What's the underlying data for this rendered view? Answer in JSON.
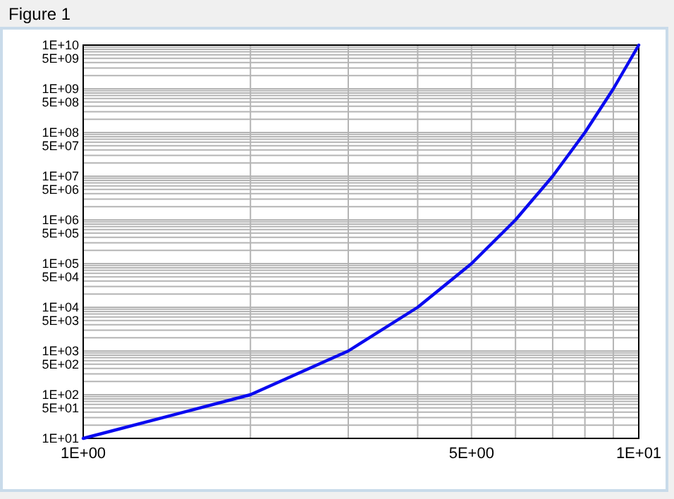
{
  "chart_data": {
    "type": "line",
    "title": "Figure 1",
    "log": "xy",
    "grid": true,
    "x": [
      1,
      2,
      3,
      4,
      5,
      6,
      7,
      8,
      9,
      10
    ],
    "series": [
      {
        "color": "#0a0af0",
        "values": [
          10.0,
          100.0,
          1000.0,
          10000.0,
          100000.0,
          1000000.0,
          10000000.0,
          100000000.0,
          1000000000.0,
          10000000000.0
        ]
      }
    ],
    "xlim": [
      1,
      10
    ],
    "ylim": [
      10.0,
      10000000000.0
    ],
    "xticks": [
      {
        "value": 1,
        "label": "1E+00"
      },
      {
        "value": 2,
        "label": null
      },
      {
        "value": 3,
        "label": null
      },
      {
        "value": 4,
        "label": null
      },
      {
        "value": 5,
        "label": "5E+00"
      },
      {
        "value": 6,
        "label": null
      },
      {
        "value": 7,
        "label": null
      },
      {
        "value": 8,
        "label": null
      },
      {
        "value": 9,
        "label": null
      },
      {
        "value": 10,
        "label": "1E+01"
      }
    ],
    "yticks": [
      {
        "value": 10.0,
        "label": "1E+01"
      },
      {
        "value": 20.0,
        "label": null
      },
      {
        "value": 30.0,
        "label": null
      },
      {
        "value": 40.0,
        "label": null
      },
      {
        "value": 50.0,
        "label": "5E+01"
      },
      {
        "value": 60.0,
        "label": null
      },
      {
        "value": 70.0,
        "label": null
      },
      {
        "value": 80.0,
        "label": null
      },
      {
        "value": 90.0,
        "label": null
      },
      {
        "value": 100.0,
        "label": "1E+02"
      },
      {
        "value": 200.0,
        "label": null
      },
      {
        "value": 300.0,
        "label": null
      },
      {
        "value": 400.0,
        "label": null
      },
      {
        "value": 500.0,
        "label": "5E+02"
      },
      {
        "value": 600.0,
        "label": null
      },
      {
        "value": 700.0,
        "label": null
      },
      {
        "value": 800.0,
        "label": null
      },
      {
        "value": 900.0,
        "label": null
      },
      {
        "value": 1000.0,
        "label": "1E+03"
      },
      {
        "value": 2000.0,
        "label": null
      },
      {
        "value": 3000.0,
        "label": null
      },
      {
        "value": 4000.0,
        "label": null
      },
      {
        "value": 5000.0,
        "label": "5E+03"
      },
      {
        "value": 6000.0,
        "label": null
      },
      {
        "value": 7000.0,
        "label": null
      },
      {
        "value": 8000.0,
        "label": null
      },
      {
        "value": 9000.0,
        "label": null
      },
      {
        "value": 10000.0,
        "label": "1E+04"
      },
      {
        "value": 20000.0,
        "label": null
      },
      {
        "value": 30000.0,
        "label": null
      },
      {
        "value": 40000.0,
        "label": null
      },
      {
        "value": 50000.0,
        "label": "5E+04"
      },
      {
        "value": 60000.0,
        "label": null
      },
      {
        "value": 70000.0,
        "label": null
      },
      {
        "value": 80000.0,
        "label": null
      },
      {
        "value": 90000.0,
        "label": null
      },
      {
        "value": 100000.0,
        "label": "1E+05"
      },
      {
        "value": 200000.0,
        "label": null
      },
      {
        "value": 300000.0,
        "label": null
      },
      {
        "value": 400000.0,
        "label": null
      },
      {
        "value": 500000.0,
        "label": "5E+05"
      },
      {
        "value": 600000.0,
        "label": null
      },
      {
        "value": 700000.0,
        "label": null
      },
      {
        "value": 800000.0,
        "label": null
      },
      {
        "value": 900000.0,
        "label": null
      },
      {
        "value": 1000000.0,
        "label": "1E+06"
      },
      {
        "value": 2000000.0,
        "label": null
      },
      {
        "value": 3000000.0,
        "label": null
      },
      {
        "value": 4000000.0,
        "label": null
      },
      {
        "value": 5000000.0,
        "label": "5E+06"
      },
      {
        "value": 6000000.0,
        "label": null
      },
      {
        "value": 7000000.0,
        "label": null
      },
      {
        "value": 8000000.0,
        "label": null
      },
      {
        "value": 9000000.0,
        "label": null
      },
      {
        "value": 10000000.0,
        "label": "1E+07"
      },
      {
        "value": 20000000.0,
        "label": null
      },
      {
        "value": 30000000.0,
        "label": null
      },
      {
        "value": 40000000.0,
        "label": null
      },
      {
        "value": 50000000.0,
        "label": "5E+07"
      },
      {
        "value": 60000000.0,
        "label": null
      },
      {
        "value": 70000000.0,
        "label": null
      },
      {
        "value": 80000000.0,
        "label": null
      },
      {
        "value": 90000000.0,
        "label": null
      },
      {
        "value": 100000000.0,
        "label": "1E+08"
      },
      {
        "value": 200000000.0,
        "label": null
      },
      {
        "value": 300000000.0,
        "label": null
      },
      {
        "value": 400000000.0,
        "label": null
      },
      {
        "value": 500000000.0,
        "label": "5E+08"
      },
      {
        "value": 600000000.0,
        "label": null
      },
      {
        "value": 700000000.0,
        "label": null
      },
      {
        "value": 800000000.0,
        "label": null
      },
      {
        "value": 900000000.0,
        "label": null
      },
      {
        "value": 1000000000.0,
        "label": "1E+09"
      },
      {
        "value": 2000000000.0,
        "label": null
      },
      {
        "value": 3000000000.0,
        "label": null
      },
      {
        "value": 4000000000.0,
        "label": null
      },
      {
        "value": 5000000000.0,
        "label": "5E+09"
      },
      {
        "value": 6000000000.0,
        "label": null
      },
      {
        "value": 7000000000.0,
        "label": null
      },
      {
        "value": 8000000000.0,
        "label": null
      },
      {
        "value": 9000000000.0,
        "label": null
      },
      {
        "value": 10000000000.0,
        "label": "1E+10"
      }
    ]
  }
}
